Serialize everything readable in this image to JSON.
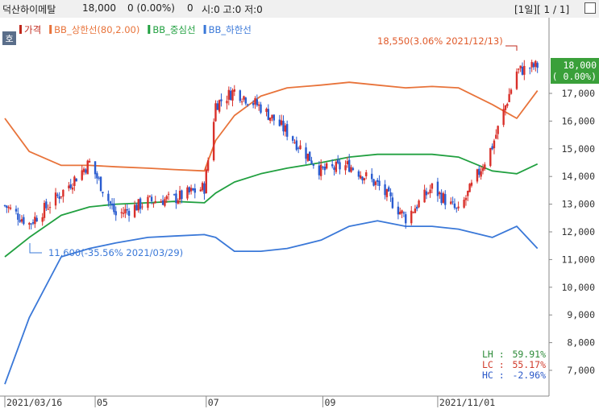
{
  "header": {
    "stock_name": "덕산하이메탈",
    "price": "18,000",
    "change": "0 (0.00%)",
    "volume": "0",
    "ohlc_info": "시:0 고:0 저:0",
    "period_label": "[1일][ 1 / 1]",
    "menu_icon": "window-icon"
  },
  "overlay_badge": "호",
  "legend": [
    {
      "label": "가격",
      "color": "#c0281c"
    },
    {
      "label": "BB_상한선(80,2.00)",
      "color": "#e8733a"
    },
    {
      "label": "BB_중심선",
      "color": "#21a040"
    },
    {
      "label": "BB_하한선",
      "color": "#3a78d8"
    }
  ],
  "annotations": {
    "high": "18,550(3.06% 2021/12/13)",
    "low": "11,600(-35.56% 2021/03/29)"
  },
  "price_badge": {
    "value": "18,000",
    "change": "( 0.00%)",
    "color": "#3aa03a"
  },
  "stats": [
    {
      "label": "LH",
      "value": "59.91%",
      "color": "#2e8b3a"
    },
    {
      "label": "LC",
      "value": "55.17%",
      "color": "#d03a2a"
    },
    {
      "label": "HC",
      "value": "-2.96%",
      "color": "#2a58c8"
    }
  ],
  "colors": {
    "up": "#d9302a",
    "down": "#2a5cd0",
    "upper": "#e8733a",
    "mid": "#21a040",
    "lower": "#3a78d8",
    "price_line": "#d9302a"
  },
  "chart_data": {
    "type": "line",
    "title": "",
    "x_ticks": [
      "2021/03/16",
      "05",
      "07",
      "09",
      "2021/11/01"
    ],
    "y_ticks": [
      "7,000",
      "8,000",
      "9,000",
      "10,000",
      "11,000",
      "12,000",
      "13,000",
      "14,000",
      "15,000",
      "16,000",
      "17,000"
    ],
    "ylim": [
      6300,
      18600
    ],
    "grid": false,
    "x": [
      "2021/03/16",
      "2021/03/29",
      "2021/04/15",
      "2021/04/30",
      "2021/05/14",
      "2021/05/31",
      "2021/06/14",
      "2021/06/30",
      "2021/07/06",
      "2021/07/16",
      "2021/07/30",
      "2021/08/13",
      "2021/08/31",
      "2021/09/15",
      "2021/09/30",
      "2021/10/15",
      "2021/10/29",
      "2021/11/12",
      "2021/11/30",
      "2021/12/13",
      "2021/12/24"
    ],
    "series": [
      {
        "name": "가격",
        "type": "candlestick",
        "values": [
          12950,
          12300,
          13400,
          14500,
          12600,
          13100,
          13200,
          13600,
          16600,
          17100,
          16500,
          15600,
          14200,
          14400,
          13700,
          12500,
          13600,
          12700,
          15100,
          17800,
          18000
        ]
      },
      {
        "name": "BB_상한선(80,2.00)",
        "values": [
          16100,
          14900,
          14400,
          14400,
          14350,
          14300,
          14250,
          14200,
          15300,
          16200,
          16900,
          17200,
          17300,
          17400,
          17300,
          17200,
          17250,
          17200,
          16600,
          16100,
          17100
        ]
      },
      {
        "name": "BB_중심선",
        "values": [
          11100,
          11800,
          12600,
          12900,
          13000,
          13050,
          13100,
          13050,
          13400,
          13800,
          14100,
          14300,
          14500,
          14700,
          14800,
          14800,
          14800,
          14700,
          14200,
          14100,
          14450
        ]
      },
      {
        "name": "BB_하한선",
        "values": [
          6500,
          8900,
          11100,
          11400,
          11600,
          11800,
          11850,
          11900,
          11800,
          11300,
          11300,
          11400,
          11700,
          12200,
          12400,
          12200,
          12200,
          12100,
          11800,
          12200,
          11400
        ]
      }
    ]
  }
}
